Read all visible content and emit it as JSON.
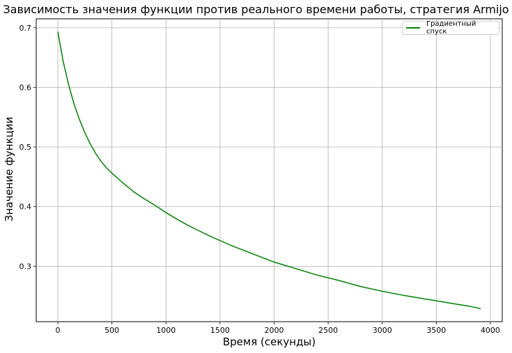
{
  "chart_data": {
    "type": "line",
    "title": "Зависимость значения функции против реального времени работы, стратегия Armijo",
    "xlabel": "Время (секунды)",
    "ylabel": "Значение функции",
    "xlim": [
      -200,
      4110
    ],
    "ylim": [
      0.207,
      0.715
    ],
    "xticks": [
      0,
      500,
      1000,
      1500,
      2000,
      2500,
      3000,
      3500,
      4000
    ],
    "yticks": [
      0.3,
      0.4,
      0.5,
      0.6,
      0.7
    ],
    "xtick_labels": [
      "0",
      "500",
      "1000",
      "1500",
      "2000",
      "2500",
      "3000",
      "3500",
      "4000"
    ],
    "ytick_labels": [
      "0.3",
      "0.4",
      "0.5",
      "0.6",
      "0.7"
    ],
    "grid": true,
    "legend": "top-right",
    "series": [
      {
        "name": "Градиентный спуск",
        "color": "#008000",
        "x": [
          0,
          50,
          100,
          150,
          200,
          250,
          300,
          350,
          400,
          450,
          500,
          600,
          700,
          800,
          900,
          1000,
          1100,
          1200,
          1300,
          1400,
          1500,
          1600,
          1700,
          1800,
          1900,
          2000,
          2200,
          2400,
          2600,
          2800,
          3000,
          3200,
          3400,
          3600,
          3800,
          3910
        ],
        "y": [
          0.693,
          0.643,
          0.604,
          0.572,
          0.546,
          0.524,
          0.505,
          0.489,
          0.476,
          0.465,
          0.456,
          0.44,
          0.425,
          0.413,
          0.402,
          0.39,
          0.379,
          0.369,
          0.36,
          0.351,
          0.343,
          0.335,
          0.328,
          0.321,
          0.314,
          0.307,
          0.296,
          0.285,
          0.276,
          0.266,
          0.258,
          0.251,
          0.245,
          0.239,
          0.233,
          0.229
        ]
      }
    ]
  }
}
